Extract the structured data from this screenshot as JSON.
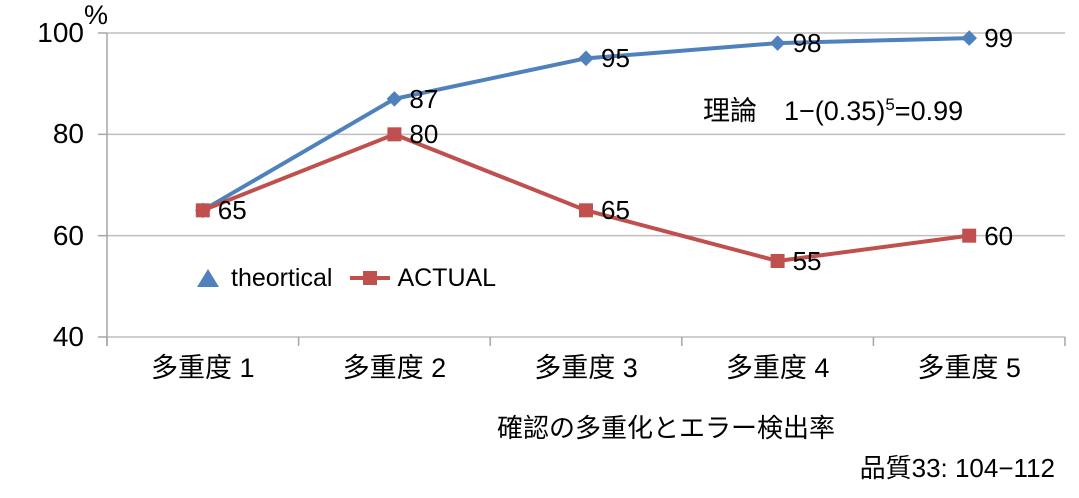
{
  "meta": {
    "citation": "品質33: 104−112"
  },
  "colors": {
    "theoretical_blue": "#4F81BD",
    "actual_red": "#C0504D",
    "gridline": "#BFBFBF",
    "axis": "#A6A6A6",
    "label_text": "#000000"
  },
  "chart_data": {
    "type": "line",
    "title": "確認の多重化とエラー検出率",
    "ylabel": "%",
    "ylim": [
      40,
      100
    ],
    "yticks": [
      100,
      80,
      60,
      40
    ],
    "grid": true,
    "legend_position": "inside-bottom-left",
    "categories": [
      "多重度 1",
      "多重度 2",
      "多重度 3",
      "多重度 4",
      "多重度 5"
    ],
    "series": [
      {
        "name": "theortical",
        "color": "#4F81BD",
        "marker": "diamond",
        "legend_marker": "triangle",
        "values": [
          65,
          87,
          95,
          98,
          99
        ],
        "labels": [
          "65",
          "87",
          "95",
          "98",
          "99"
        ]
      },
      {
        "name": "ACTUAL",
        "color": "#C0504D",
        "marker": "square",
        "legend_marker": "line-square",
        "values": [
          65,
          80,
          65,
          55,
          60
        ],
        "labels": [
          "",
          "80",
          "65",
          "55",
          "60"
        ]
      }
    ],
    "annotation": {
      "prefix": "理論",
      "formula_base": "1−(0.35)",
      "formula_sup": "5",
      "formula_suffix": "=0.99"
    }
  }
}
